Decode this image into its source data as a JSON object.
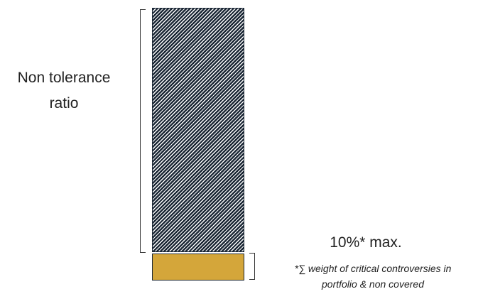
{
  "labels": {
    "non_tolerance_line1": "Non tolerance",
    "non_tolerance_line2": "ratio",
    "max": "10%* max.",
    "footnote_line1": "*∑ weight of critical controversies in",
    "footnote_line2": "portfolio & non covered"
  },
  "segments": [
    {
      "name": "Non tolerance ratio",
      "share": 0.9,
      "color": "#1b2735",
      "pattern": "diagonal-stripes"
    },
    {
      "name": "critical controversies & non covered",
      "share": 0.1,
      "color": "#d4a63a"
    }
  ],
  "colors": {
    "navy": "#1b2735",
    "gold": "#d4a63a"
  }
}
